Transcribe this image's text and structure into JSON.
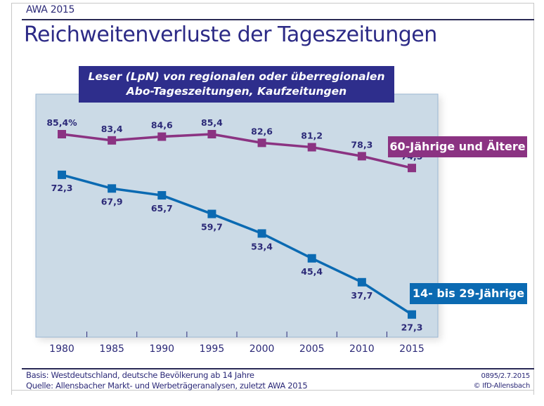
{
  "header": {
    "kicker": "AWA 2015",
    "title": "Reichweitenverluste der Tageszeitungen"
  },
  "chart_data": {
    "type": "line",
    "title": "Reichweitenverluste der Tageszeitungen",
    "subtitle_lines": [
      "Leser (LpN) von regionalen oder überregionalen",
      "Abo-Tageszeitungen, Kaufzeitungen"
    ],
    "x": [
      "1980",
      "1985",
      "1990",
      "1995",
      "2000",
      "2005",
      "2010",
      "2015"
    ],
    "xlabel": "",
    "ylabel": "",
    "unit": "%",
    "ylim": [
      20,
      98.3
    ],
    "grid": false,
    "series": [
      {
        "name": "60-Jährige und Ältere",
        "color": "#8b3382",
        "values": [
          85.4,
          83.4,
          84.6,
          85.4,
          82.6,
          81.2,
          78.3,
          74.5
        ],
        "labels": [
          "85,4%",
          "83,4",
          "84,6",
          "85,4",
          "82,6",
          "81,2",
          "78,3",
          "74,5"
        ],
        "label_position": "above",
        "legend_position": "right"
      },
      {
        "name": "14- bis 29-Jährige",
        "color": "#0b6ab2",
        "values": [
          72.3,
          67.9,
          65.7,
          59.7,
          53.4,
          45.4,
          37.7,
          27.3
        ],
        "labels": [
          "72,3",
          "67,9",
          "65,7",
          "59,7",
          "53,4",
          "45,4",
          "37,7",
          "27,3"
        ],
        "label_position": "below",
        "legend_position": "right"
      }
    ],
    "colors": {
      "plot_background": "#cbdae6",
      "plot_border": "#9bb6d2",
      "label_text": "#2c2a78",
      "subtitle_background": "#2e2e8c"
    }
  },
  "footer": {
    "basis": "Basis: Westdeutschland, deutsche Bevölkerung ab 14 Jahre",
    "source": "Quelle: Allensbacher Markt- und Werbeträgeranalysen, zuletzt AWA 2015",
    "code": "0895/2.7.2015",
    "copyright": "© IfD-Allensbach"
  }
}
